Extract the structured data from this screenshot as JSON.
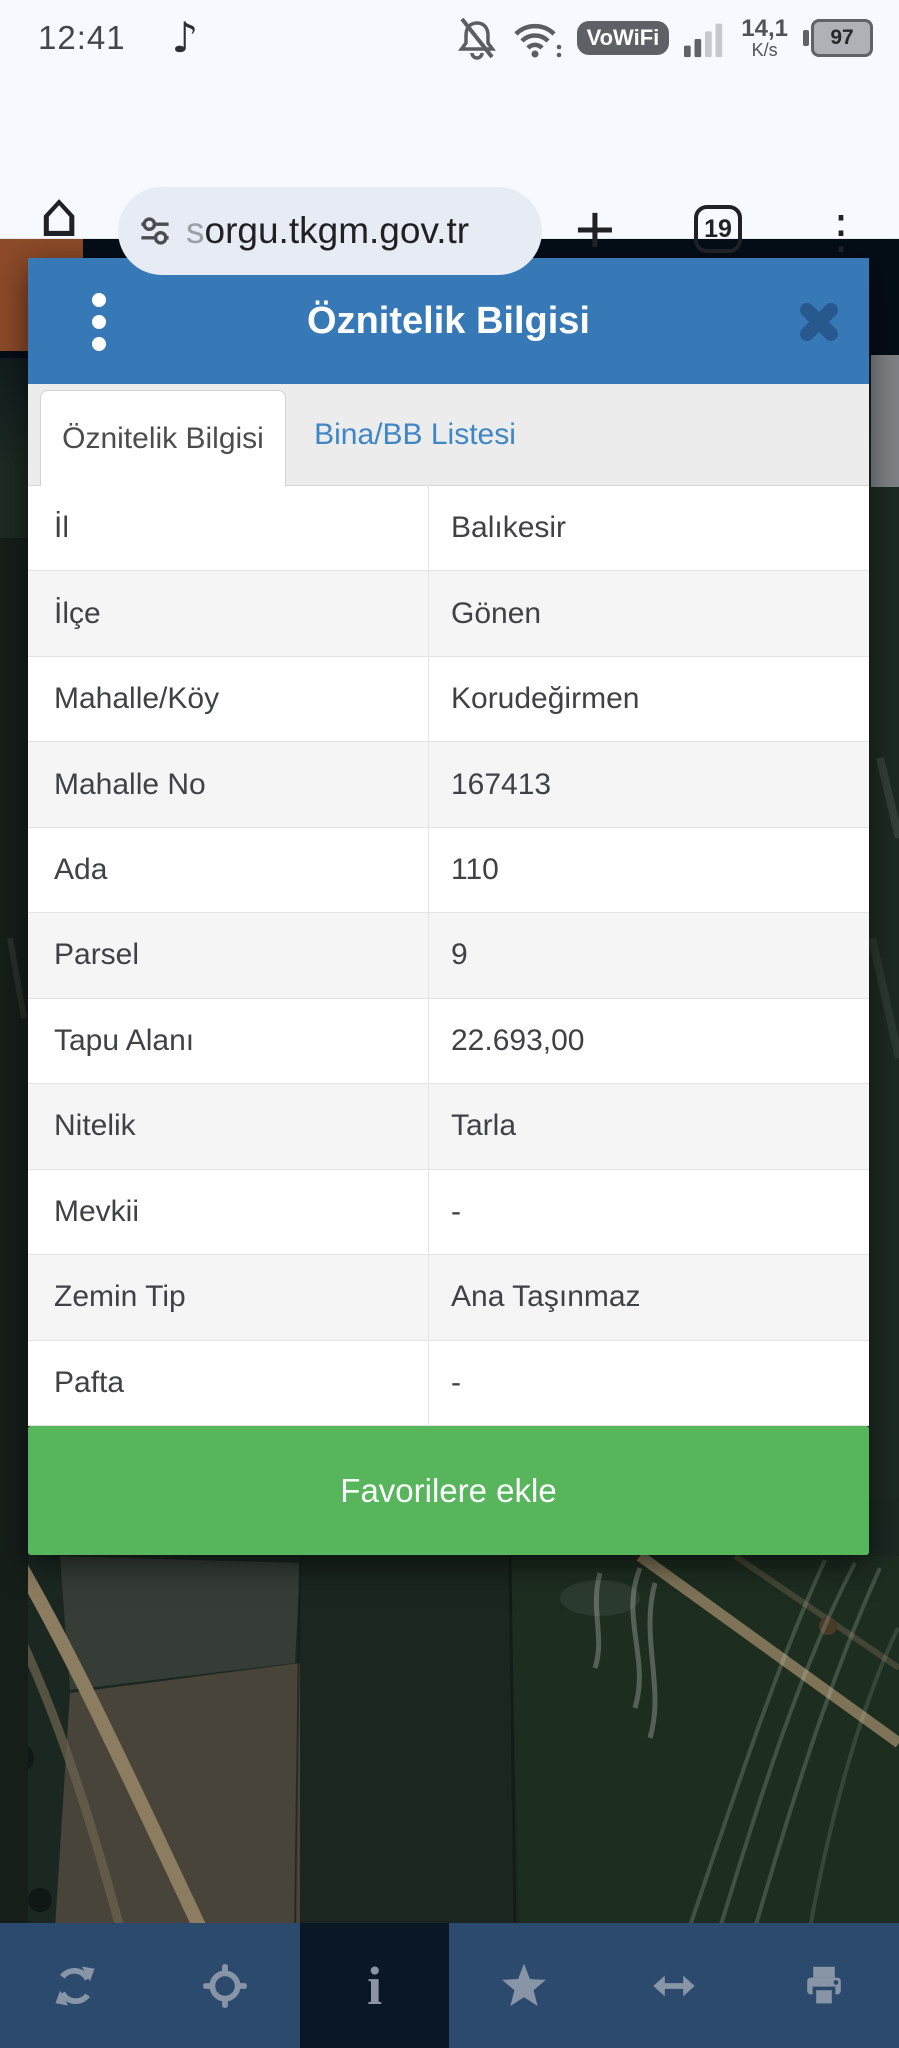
{
  "status_bar": {
    "time": "12:41",
    "music_note_glyph": "♪",
    "vowifi_label": "VoWiFi",
    "net_speed_value": "14,1",
    "net_speed_unit": "K/s",
    "battery_percent": "97"
  },
  "browser": {
    "url_subdomain_prefix": "s",
    "url_main": "orgu.tkgm.gov.tr",
    "plus_label": "+",
    "tab_count": "19",
    "menu_glyph": "⋮",
    "home_glyph": "⌂"
  },
  "panel": {
    "title": "Öznitelik Bilgisi",
    "tabs": [
      {
        "label": "Öznitelik Bilgisi",
        "active": true
      },
      {
        "label": "Bina/BB Listesi",
        "active": false
      }
    ],
    "rows": [
      {
        "label": "İl",
        "value": "Balıkesir"
      },
      {
        "label": "İlçe",
        "value": "Gönen"
      },
      {
        "label": "Mahalle/Köy",
        "value": "Korudeğirmen"
      },
      {
        "label": "Mahalle No",
        "value": "167413"
      },
      {
        "label": "Ada",
        "value": "110"
      },
      {
        "label": "Parsel",
        "value": "9"
      },
      {
        "label": "Tapu Alanı",
        "value": "22.693,00"
      },
      {
        "label": "Nitelik",
        "value": "Tarla"
      },
      {
        "label": "Mevkii",
        "value": "-"
      },
      {
        "label": "Zemin Tip",
        "value": "Ana Taşınmaz"
      },
      {
        "label": "Pafta",
        "value": "-"
      }
    ],
    "favorite_button_label": "Favorilere ekle"
  },
  "toolbar": {
    "icons": [
      "refresh",
      "locate",
      "info",
      "favorites",
      "measure-horizontal",
      "print"
    ],
    "active_icon": "info",
    "info_glyph": "i"
  },
  "colors": {
    "header_blue": "#3779b7",
    "tab_link_blue": "#3e86c5",
    "button_green": "#57b65c",
    "toolbar_bg": "#2c4a6e",
    "toolbar_active_bg": "#0a1826",
    "page_brown": "#8c4a28"
  }
}
